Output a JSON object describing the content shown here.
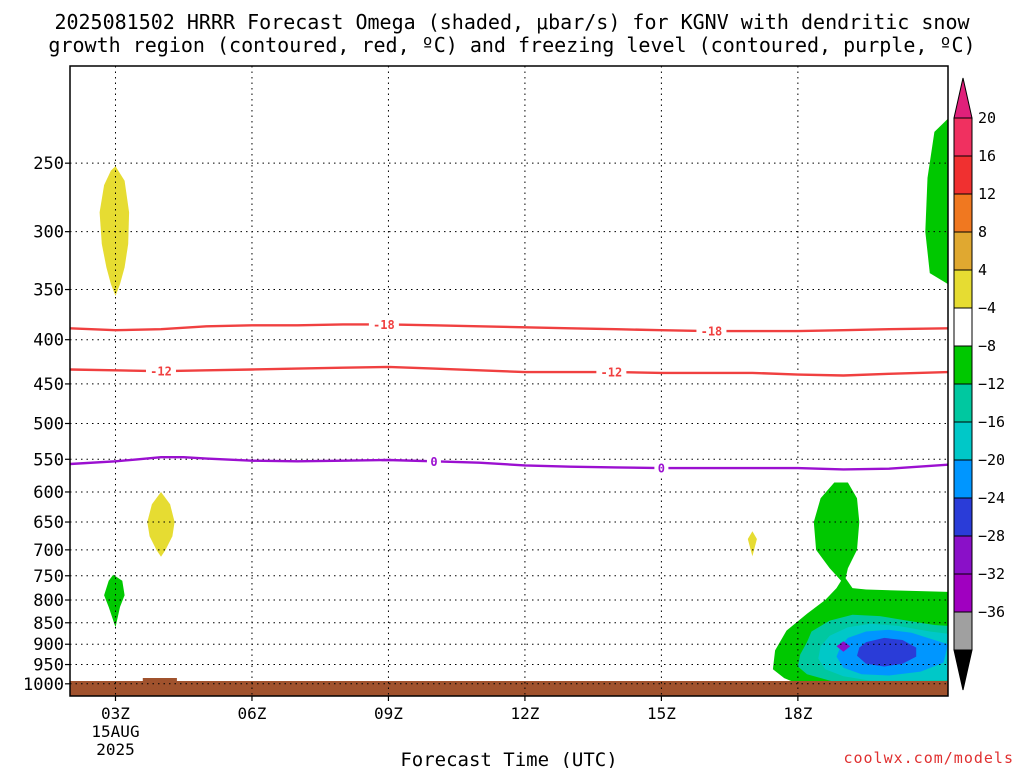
{
  "chart_data": {
    "type": "contour",
    "title_lines": [
      "2025081502 HRRR Forecast Omega (shaded, μbar/s) for KGNV with dendritic snow",
      "growth region (contoured, red, ºC) and freezing level (contoured, purple, ºC)"
    ],
    "xlabel": "Forecast Time (UTC)",
    "xlim": [
      2,
      21.3
    ],
    "x_ticks": [
      {
        "x": 3,
        "label": "03Z",
        "sub": [
          "15AUG",
          "2025"
        ]
      },
      {
        "x": 6,
        "label": "06Z"
      },
      {
        "x": 9,
        "label": "09Z"
      },
      {
        "x": 12,
        "label": "12Z"
      },
      {
        "x": 15,
        "label": "15Z"
      },
      {
        "x": 18,
        "label": "18Z"
      }
    ],
    "y_ticks": [
      250,
      300,
      350,
      400,
      450,
      500,
      550,
      600,
      650,
      700,
      750,
      800,
      850,
      900,
      950,
      1000
    ],
    "ylim": [
      1033,
      193
    ],
    "y_scale": "log (pressure, hPa)",
    "grid": true,
    "ground_color": "#a0522d",
    "contours": [
      {
        "name": "-18",
        "color": "#f04040",
        "points": [
          [
            2.0,
            388
          ],
          [
            3.0,
            390
          ],
          [
            4.0,
            389
          ],
          [
            5.0,
            386
          ],
          [
            6.0,
            385
          ],
          [
            7.0,
            385
          ],
          [
            8.0,
            384
          ],
          [
            9.0,
            384
          ],
          [
            10.0,
            385
          ],
          [
            11.0,
            386
          ],
          [
            12.0,
            387
          ],
          [
            13.0,
            388
          ],
          [
            14.0,
            389
          ],
          [
            15.0,
            390
          ],
          [
            16.0,
            391
          ],
          [
            17.0,
            391
          ],
          [
            18.0,
            391
          ],
          [
            19.0,
            390
          ],
          [
            20.0,
            389
          ],
          [
            21.3,
            388
          ]
        ],
        "labels": [
          8.9,
          16.1
        ]
      },
      {
        "name": "-12",
        "color": "#f04040",
        "points": [
          [
            2.0,
            433
          ],
          [
            3.0,
            434
          ],
          [
            4.0,
            435
          ],
          [
            5.0,
            434
          ],
          [
            6.0,
            433
          ],
          [
            7.0,
            432
          ],
          [
            8.0,
            431
          ],
          [
            9.0,
            430
          ],
          [
            10.0,
            432
          ],
          [
            11.0,
            434
          ],
          [
            12.0,
            436
          ],
          [
            13.0,
            436
          ],
          [
            14.0,
            436
          ],
          [
            15.0,
            437
          ],
          [
            16.0,
            437
          ],
          [
            17.0,
            437
          ],
          [
            18.0,
            439
          ],
          [
            19.0,
            440
          ],
          [
            20.0,
            438
          ],
          [
            21.3,
            436
          ]
        ],
        "labels": [
          4.0,
          13.9
        ]
      },
      {
        "name": "0",
        "color": "#9b10d0",
        "points": [
          [
            2.0,
            557
          ],
          [
            3.0,
            553
          ],
          [
            3.5,
            550
          ],
          [
            4.0,
            547
          ],
          [
            4.5,
            547
          ],
          [
            5.0,
            549
          ],
          [
            6.0,
            552
          ],
          [
            7.0,
            553
          ],
          [
            8.0,
            552
          ],
          [
            9.0,
            551
          ],
          [
            10.0,
            553
          ],
          [
            11.0,
            555
          ],
          [
            12.0,
            559
          ],
          [
            13.0,
            561
          ],
          [
            14.0,
            562
          ],
          [
            15.0,
            563
          ],
          [
            16.0,
            563
          ],
          [
            17.0,
            563
          ],
          [
            18.0,
            563
          ],
          [
            19.0,
            565
          ],
          [
            20.0,
            564
          ],
          [
            21.3,
            558
          ]
        ],
        "labels": [
          10.0,
          15.0
        ]
      }
    ],
    "omega_shading": [
      {
        "level": "4 to 8",
        "color": "#e6dc32",
        "polygon": [
          [
            3.0,
            252
          ],
          [
            3.2,
            262
          ],
          [
            3.3,
            285
          ],
          [
            3.28,
            310
          ],
          [
            3.2,
            330
          ],
          [
            3.1,
            345
          ],
          [
            3.0,
            356
          ],
          [
            2.9,
            345
          ],
          [
            2.8,
            330
          ],
          [
            2.7,
            310
          ],
          [
            2.65,
            285
          ],
          [
            2.75,
            265
          ],
          [
            2.9,
            255
          ]
        ]
      },
      {
        "level": "4 to 8",
        "color": "#e6dc32",
        "polygon": [
          [
            4.0,
            600
          ],
          [
            4.2,
            620
          ],
          [
            4.3,
            650
          ],
          [
            4.25,
            675
          ],
          [
            4.1,
            700
          ],
          [
            4.0,
            713
          ],
          [
            3.9,
            700
          ],
          [
            3.75,
            675
          ],
          [
            3.7,
            650
          ],
          [
            3.8,
            620
          ]
        ]
      },
      {
        "level": "4 to 8",
        "color": "#e6dc32",
        "polygon": [
          [
            17.0,
            666
          ],
          [
            17.1,
            680
          ],
          [
            17.0,
            712
          ],
          [
            16.9,
            680
          ]
        ]
      },
      {
        "level": "-4 to -8",
        "color": "#00c800",
        "polygon": [
          [
            2.95,
            748
          ],
          [
            3.15,
            760
          ],
          [
            3.2,
            790
          ],
          [
            3.1,
            815
          ],
          [
            3.0,
            860
          ],
          [
            2.85,
            815
          ],
          [
            2.75,
            790
          ],
          [
            2.85,
            760
          ]
        ]
      },
      {
        "level": "-4 to -8",
        "color": "#00c800",
        "polygon": [
          [
            21.3,
            222
          ],
          [
            21.0,
            230
          ],
          [
            20.85,
            260
          ],
          [
            20.8,
            300
          ],
          [
            20.9,
            335
          ],
          [
            21.3,
            345
          ]
        ]
      },
      {
        "level": "-4 to -8",
        "color": "#00c800",
        "polygon": [
          [
            19.1,
            585
          ],
          [
            19.3,
            610
          ],
          [
            19.35,
            650
          ],
          [
            19.3,
            700
          ],
          [
            19.1,
            735
          ],
          [
            19.05,
            755
          ],
          [
            19.2,
            775
          ],
          [
            19.5,
            778
          ],
          [
            20.2,
            780
          ],
          [
            21.3,
            783
          ],
          [
            21.3,
            1005
          ],
          [
            18.1,
            1005
          ],
          [
            17.7,
            985
          ],
          [
            17.45,
            962
          ],
          [
            17.5,
            915
          ],
          [
            17.75,
            868
          ],
          [
            18.2,
            830
          ],
          [
            18.6,
            800
          ],
          [
            18.85,
            775
          ],
          [
            18.95,
            760
          ],
          [
            18.7,
            735
          ],
          [
            18.4,
            700
          ],
          [
            18.35,
            650
          ],
          [
            18.5,
            610
          ],
          [
            18.8,
            585
          ]
        ]
      },
      {
        "level": "-8 to -12",
        "color": "#00c8a0",
        "polygon": [
          [
            18.3,
            870
          ],
          [
            18.7,
            845
          ],
          [
            19.2,
            832
          ],
          [
            19.8,
            835
          ],
          [
            20.4,
            845
          ],
          [
            21.0,
            855
          ],
          [
            21.3,
            857
          ],
          [
            21.3,
            1000
          ],
          [
            19.8,
            1000
          ],
          [
            18.8,
            995
          ],
          [
            18.2,
            975
          ],
          [
            18.0,
            955
          ],
          [
            18.05,
            925
          ],
          [
            18.2,
            895
          ]
        ]
      },
      {
        "level": "-12 to -16",
        "color": "#00c8c8",
        "polygon": [
          [
            18.7,
            880
          ],
          [
            19.1,
            860
          ],
          [
            19.6,
            852
          ],
          [
            20.2,
            857
          ],
          [
            20.9,
            870
          ],
          [
            21.3,
            875
          ],
          [
            21.3,
            990
          ],
          [
            20.5,
            992
          ],
          [
            19.6,
            992
          ],
          [
            19.0,
            980
          ],
          [
            18.6,
            962
          ],
          [
            18.45,
            935
          ],
          [
            18.5,
            905
          ]
        ]
      },
      {
        "level": "-16 to -20",
        "color": "#0096ff",
        "polygon": [
          [
            19.1,
            885
          ],
          [
            19.5,
            870
          ],
          [
            20.0,
            866
          ],
          [
            20.5,
            873
          ],
          [
            21.0,
            890
          ],
          [
            21.3,
            900
          ],
          [
            21.2,
            945
          ],
          [
            20.7,
            968
          ],
          [
            20.0,
            978
          ],
          [
            19.4,
            975
          ],
          [
            19.0,
            958
          ],
          [
            18.85,
            930
          ],
          [
            18.95,
            903
          ]
        ]
      },
      {
        "level": "-20 to -24",
        "color": "#2a3cd8",
        "polygon": [
          [
            19.5,
            895
          ],
          [
            19.9,
            885
          ],
          [
            20.3,
            890
          ],
          [
            20.6,
            908
          ],
          [
            20.6,
            930
          ],
          [
            20.3,
            948
          ],
          [
            19.9,
            955
          ],
          [
            19.5,
            948
          ],
          [
            19.3,
            928
          ],
          [
            19.35,
            908
          ]
        ]
      },
      {
        "level": "-24 to -28",
        "color": "#8a10c8",
        "polygon": [
          [
            19.0,
            893
          ],
          [
            19.15,
            905
          ],
          [
            19.0,
            918
          ],
          [
            18.85,
            905
          ]
        ]
      }
    ],
    "colorbar": {
      "ticks": [
        "20",
        "16",
        "12",
        "8",
        "4",
        "−4",
        "−8",
        "−12",
        "−16",
        "−20",
        "−24",
        "−28",
        "−32",
        "−36"
      ],
      "colors": [
        "#f03060",
        "#f03030",
        "#f07820",
        "#e0a830",
        "#e6dc32",
        "#ffffff",
        "#00c800",
        "#00c8a0",
        "#00c8c8",
        "#0096ff",
        "#2a3cd8",
        "#8a10c8",
        "#a000c0",
        "#a0a0a0"
      ],
      "top_arrow_color": "#e0207a",
      "bottom_arrow_color": "#000000"
    },
    "credit": "coolwx.com/models"
  }
}
